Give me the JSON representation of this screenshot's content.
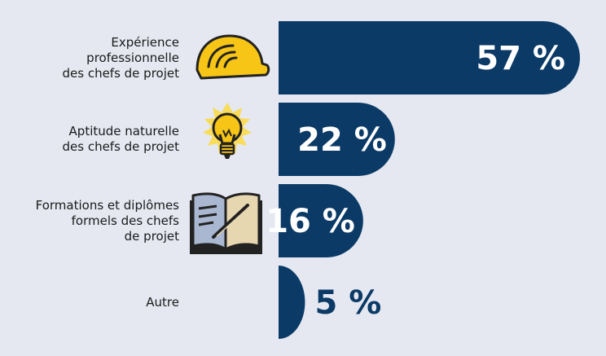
{
  "chart_data": {
    "type": "bar",
    "orientation": "horizontal",
    "unit": "%",
    "categories": [
      "Expérience professionnelle des chefs de projet",
      "Aptitude naturelle des chefs de projet",
      "Formations et diplômes formels des chefs de projet",
      "Autre"
    ],
    "label_lines": [
      [
        "Expérience",
        "professionnelle",
        "des chefs de projet"
      ],
      [
        "Aptitude naturelle",
        "des chefs de projet"
      ],
      [
        "Formations et diplômes",
        "formels des chefs",
        "de projet"
      ],
      [
        "Autre"
      ]
    ],
    "values": [
      57,
      22,
      16,
      5
    ],
    "value_labels": [
      "57 %",
      "22 %",
      "16 %",
      "5 %"
    ],
    "icons": [
      "hard-hat-icon",
      "lightbulb-icon",
      "open-book-icon",
      ""
    ],
    "xlim": [
      0,
      57
    ]
  },
  "colors": {
    "background": "#e5e8f1",
    "bar": "#0b3a66",
    "label_on_bar": "#ffffff",
    "label_off_bar": "#0b3a66",
    "hat": "#f6c515",
    "bulb": "#f6c515",
    "book_left": "#a9b7d0",
    "book_right": "#e7d7b1"
  }
}
